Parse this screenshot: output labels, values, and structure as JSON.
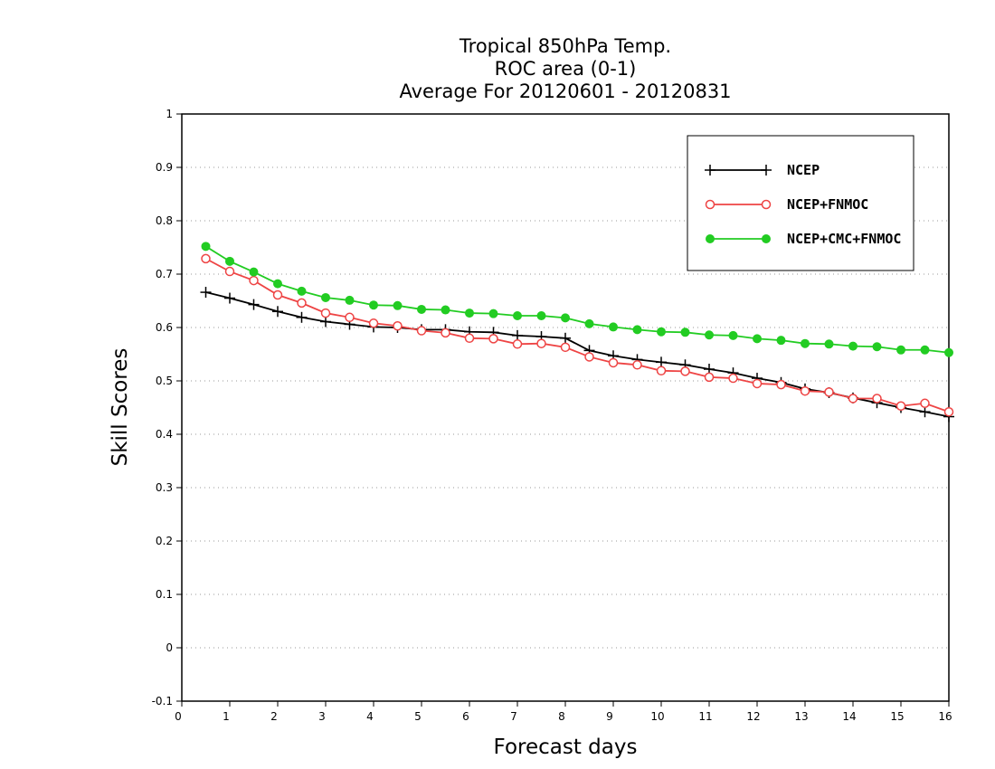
{
  "chart_data": {
    "type": "line",
    "title_lines": [
      "Tropical 850hPa Temp.",
      "ROC area (0-1)",
      "Average For 20120601 - 20120831"
    ],
    "xlabel": "Forecast days",
    "ylabel": "Skill Scores",
    "xlim": [
      0,
      16
    ],
    "ylim": [
      -0.1,
      1
    ],
    "x_ticks": [
      "0",
      "1",
      "2",
      "3",
      "4",
      "5",
      "6",
      "7",
      "8",
      "9",
      "10",
      "11",
      "12",
      "13",
      "14",
      "15",
      "16"
    ],
    "y_ticks": [
      "-0.1",
      "0",
      "0.1",
      "0.2",
      "0.3",
      "0.4",
      "0.5",
      "0.6",
      "0.7",
      "0.8",
      "0.9",
      "1"
    ],
    "grid": "horizontal dotted",
    "legend_position": "top-right",
    "x": [
      0.5,
      1.0,
      1.5,
      2.0,
      2.5,
      3.0,
      3.5,
      4.0,
      4.5,
      5.0,
      5.5,
      6.0,
      6.5,
      7.0,
      7.5,
      8.0,
      8.5,
      9.0,
      9.5,
      10.0,
      10.5,
      11.0,
      11.5,
      12.0,
      12.5,
      13.0,
      13.5,
      14.0,
      14.5,
      15.0,
      15.5,
      16.0
    ],
    "series": [
      {
        "name": "NCEP",
        "color": "#000000",
        "marker": "plus",
        "values": [
          0.666,
          0.655,
          0.643,
          0.63,
          0.619,
          0.611,
          0.606,
          0.601,
          0.6,
          0.596,
          0.596,
          0.592,
          0.591,
          0.585,
          0.583,
          0.58,
          0.557,
          0.547,
          0.54,
          0.535,
          0.53,
          0.522,
          0.515,
          0.505,
          0.497,
          0.485,
          0.478,
          0.468,
          0.459,
          0.45,
          0.442,
          0.433
        ]
      },
      {
        "name": "NCEP+FNMOC",
        "color": "#ee4444",
        "marker": "open-circle",
        "values": [
          0.729,
          0.705,
          0.688,
          0.661,
          0.646,
          0.627,
          0.619,
          0.608,
          0.603,
          0.594,
          0.59,
          0.58,
          0.579,
          0.569,
          0.57,
          0.563,
          0.545,
          0.534,
          0.53,
          0.519,
          0.518,
          0.507,
          0.505,
          0.495,
          0.493,
          0.481,
          0.479,
          0.467,
          0.467,
          0.453,
          0.458,
          0.442
        ]
      },
      {
        "name": "NCEP+CMC+FNMOC",
        "color": "#22cc22",
        "marker": "filled-circle",
        "values": [
          0.752,
          0.724,
          0.704,
          0.682,
          0.668,
          0.656,
          0.651,
          0.642,
          0.641,
          0.634,
          0.633,
          0.627,
          0.626,
          0.622,
          0.622,
          0.618,
          0.607,
          0.601,
          0.596,
          0.592,
          0.591,
          0.586,
          0.585,
          0.579,
          0.576,
          0.57,
          0.569,
          0.565,
          0.564,
          0.558,
          0.558,
          0.553
        ]
      }
    ]
  }
}
